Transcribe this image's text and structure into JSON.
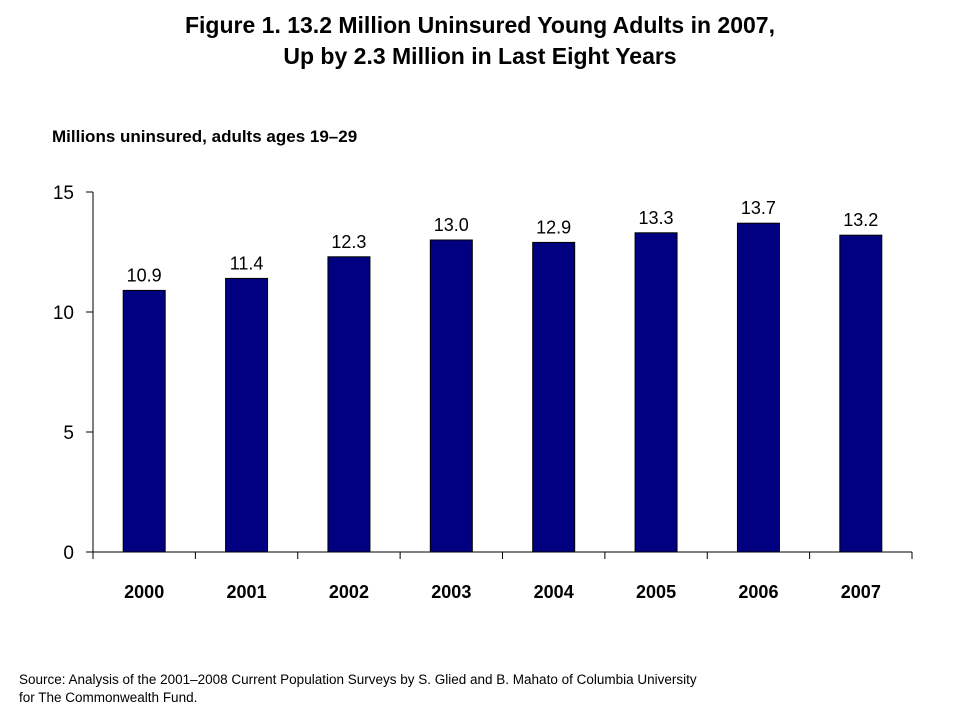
{
  "title": {
    "line1": "Figure 1. 13.2 Million Uninsured Young Adults in 2007,",
    "line2": "Up by 2.3 Million in Last Eight Years"
  },
  "subtitle": "Millions uninsured, adults ages 19–29",
  "source": {
    "line1": "Source: Analysis of the 2001–2008 Current Population Surveys by S. Glied and B. Mahato of Columbia University",
    "line2": "for The Commonwealth Fund."
  },
  "chart_data": {
    "type": "bar",
    "title": "Figure 1. 13.2 Million Uninsured Young Adults in 2007, Up by 2.3 Million in Last Eight Years",
    "ylabel": "Millions uninsured, adults ages 19–29",
    "xlabel": "",
    "categories": [
      "2000",
      "2001",
      "2002",
      "2003",
      "2004",
      "2005",
      "2006",
      "2007"
    ],
    "values": [
      10.9,
      11.4,
      12.3,
      13.0,
      12.9,
      13.3,
      13.7,
      13.2
    ],
    "value_labels": [
      "10.9",
      "11.4",
      "12.3",
      "13.0",
      "12.9",
      "13.3",
      "13.7",
      "13.2"
    ],
    "ylim": [
      0,
      15
    ],
    "yticks": [
      0,
      5,
      10,
      15
    ],
    "grid": false,
    "legend": "none",
    "bar_color": "#000080"
  }
}
